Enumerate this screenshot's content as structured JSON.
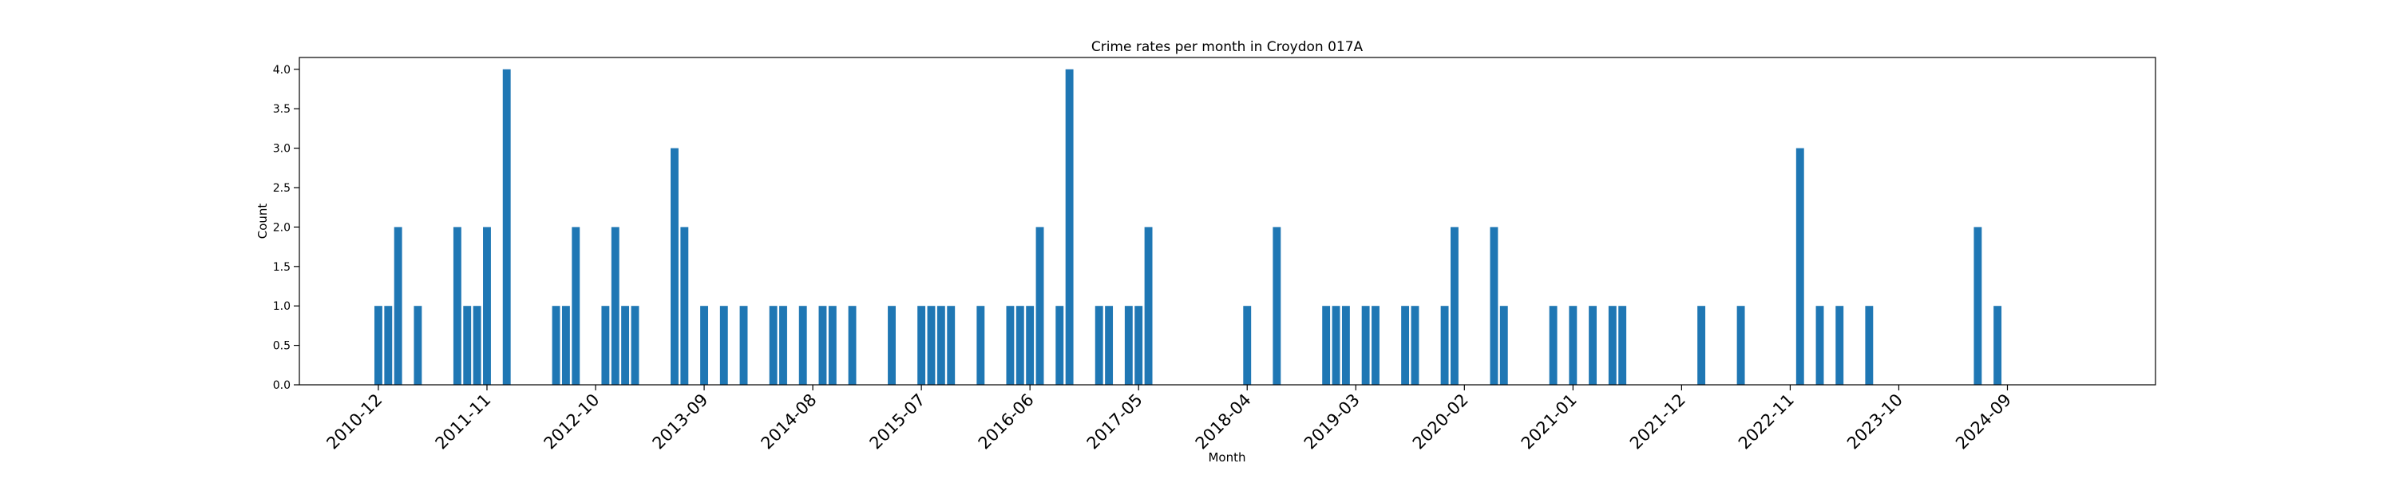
{
  "chart_data": {
    "type": "bar",
    "title": "Crime rates per month in Croydon 017A",
    "xlabel": "Month",
    "ylabel": "Count",
    "ylim": [
      0,
      4.15
    ],
    "y_ticks": [
      0.0,
      0.5,
      1.0,
      1.5,
      2.0,
      2.5,
      3.0,
      3.5,
      4.0
    ],
    "x_ticks": [
      "2010-12",
      "2011-11",
      "2012-10",
      "2013-09",
      "2014-08",
      "2015-07",
      "2016-06",
      "2017-05",
      "2018-04",
      "2019-03",
      "2020-02",
      "2021-01",
      "2021-12",
      "2022-11",
      "2023-10",
      "2024-09"
    ],
    "x_range": [
      "2010-04",
      "2025-12"
    ],
    "grid": false,
    "legend": "none",
    "bar_color": "#1f77b4",
    "categories": [
      "2010-12",
      "2011-01",
      "2011-02",
      "2011-04",
      "2011-08",
      "2011-09",
      "2011-10",
      "2011-11",
      "2012-01",
      "2012-06",
      "2012-07",
      "2012-08",
      "2012-11",
      "2012-12",
      "2013-01",
      "2013-02",
      "2013-06",
      "2013-07",
      "2013-09",
      "2013-11",
      "2014-01",
      "2014-04",
      "2014-05",
      "2014-07",
      "2014-09",
      "2014-10",
      "2014-12",
      "2015-04",
      "2015-07",
      "2015-08",
      "2015-09",
      "2015-10",
      "2016-01",
      "2016-04",
      "2016-05",
      "2016-06",
      "2016-07",
      "2016-09",
      "2016-10",
      "2017-01",
      "2017-02",
      "2017-04",
      "2017-05",
      "2017-06",
      "2018-04",
      "2018-07",
      "2018-12",
      "2019-01",
      "2019-02",
      "2019-04",
      "2019-05",
      "2019-08",
      "2019-09",
      "2019-12",
      "2020-01",
      "2020-05",
      "2020-06",
      "2020-11",
      "2021-01",
      "2021-03",
      "2021-05",
      "2021-06",
      "2022-02",
      "2022-06",
      "2022-12",
      "2023-02",
      "2023-04",
      "2023-07",
      "2024-06",
      "2024-08"
    ],
    "values": [
      1,
      1,
      2,
      1,
      2,
      1,
      1,
      2,
      4,
      1,
      1,
      2,
      1,
      2,
      1,
      1,
      3,
      2,
      1,
      1,
      1,
      1,
      1,
      1,
      1,
      1,
      1,
      1,
      1,
      1,
      1,
      1,
      1,
      1,
      1,
      1,
      2,
      1,
      4,
      1,
      1,
      1,
      1,
      2,
      1,
      2,
      1,
      1,
      1,
      1,
      1,
      1,
      1,
      1,
      2,
      2,
      1,
      1,
      1,
      1,
      1,
      1,
      1,
      1,
      3,
      1,
      1,
      1,
      2,
      1
    ]
  }
}
